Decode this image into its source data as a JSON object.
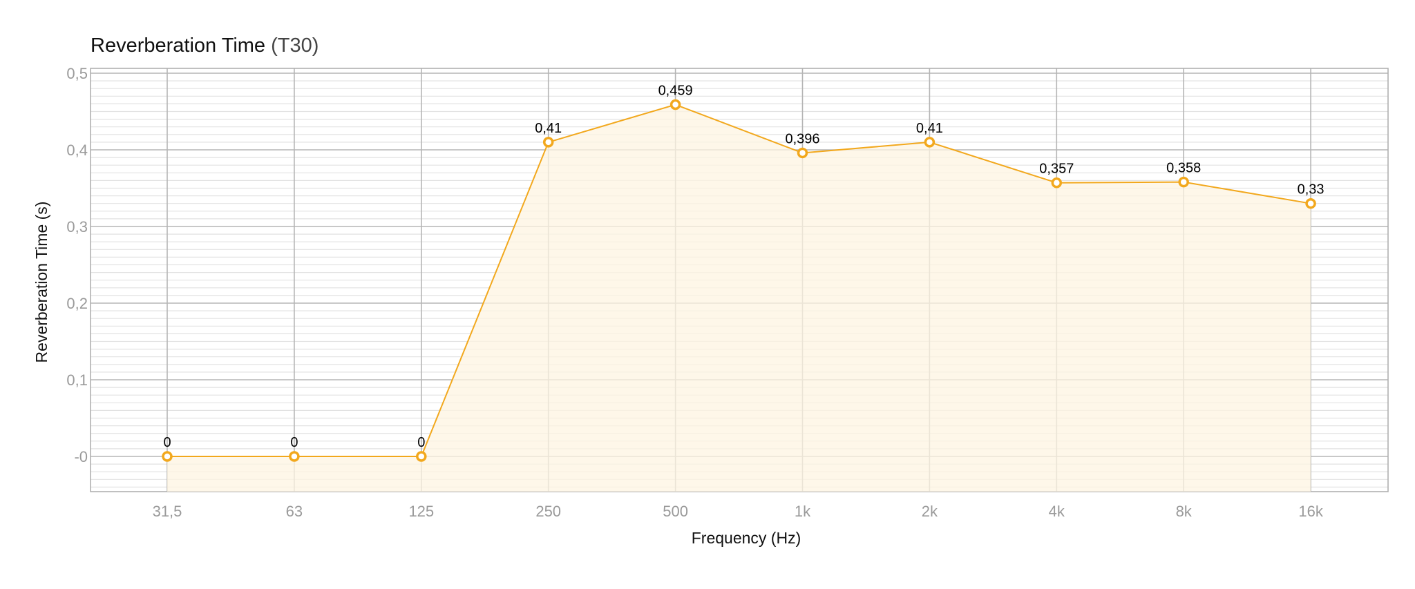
{
  "chart_data": {
    "type": "area",
    "title": "Reverberation Time",
    "title_suffix": "(T30)",
    "xlabel": "Frequency (Hz)",
    "ylabel": "Reverberation Time (s)",
    "categories": [
      "31,5",
      "63",
      "125",
      "250",
      "500",
      "1k",
      "2k",
      "4k",
      "8k",
      "16k"
    ],
    "series": [
      {
        "values": [
          0,
          0,
          0,
          0.41,
          0.459,
          0.396,
          0.41,
          0.357,
          0.358,
          0.33
        ],
        "labels": [
          "0",
          "0",
          "0",
          "0,41",
          "0,459",
          "0,396",
          "0,41",
          "0,357",
          "0,358",
          "0,33"
        ],
        "color": "#f2a81d"
      }
    ],
    "ylim": [
      -0.05,
      0.5
    ],
    "yticks": [
      0,
      0.1,
      0.2,
      0.3,
      0.4,
      0.5
    ],
    "ytick_labels": [
      "-0",
      "0,1",
      "0,2",
      "0,3",
      "0,4",
      "0,5"
    ],
    "grid": true,
    "legend": "none"
  }
}
